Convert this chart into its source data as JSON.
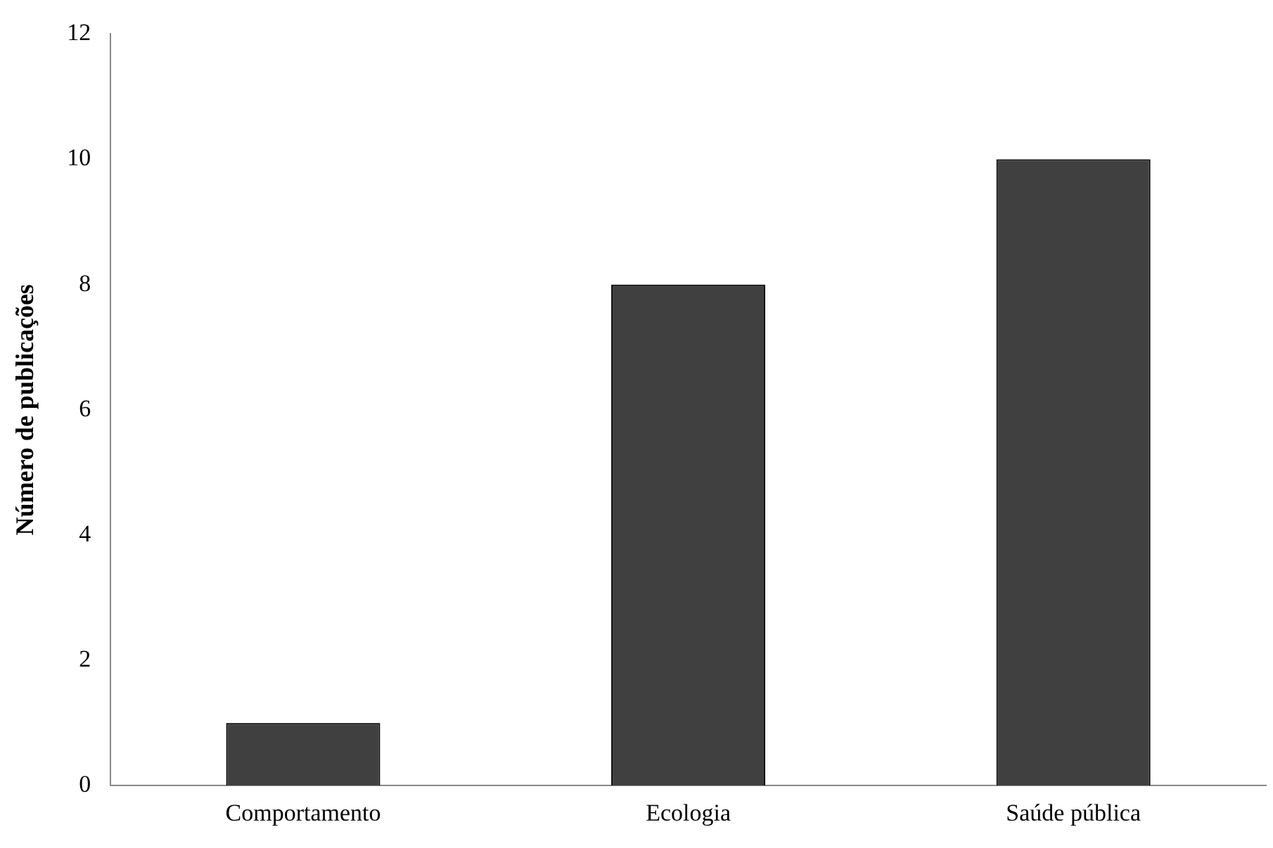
{
  "chart_data": {
    "type": "bar",
    "ylabel": "Número de publicações",
    "categories": [
      "Comportamento",
      "Ecologia",
      "Saúde pública"
    ],
    "values": [
      1,
      8,
      10
    ],
    "color": "#404040",
    "ylim": [
      0,
      12
    ],
    "yticks": [
      0,
      2,
      4,
      6,
      8,
      10,
      12
    ],
    "grid": false,
    "legend": false
  }
}
